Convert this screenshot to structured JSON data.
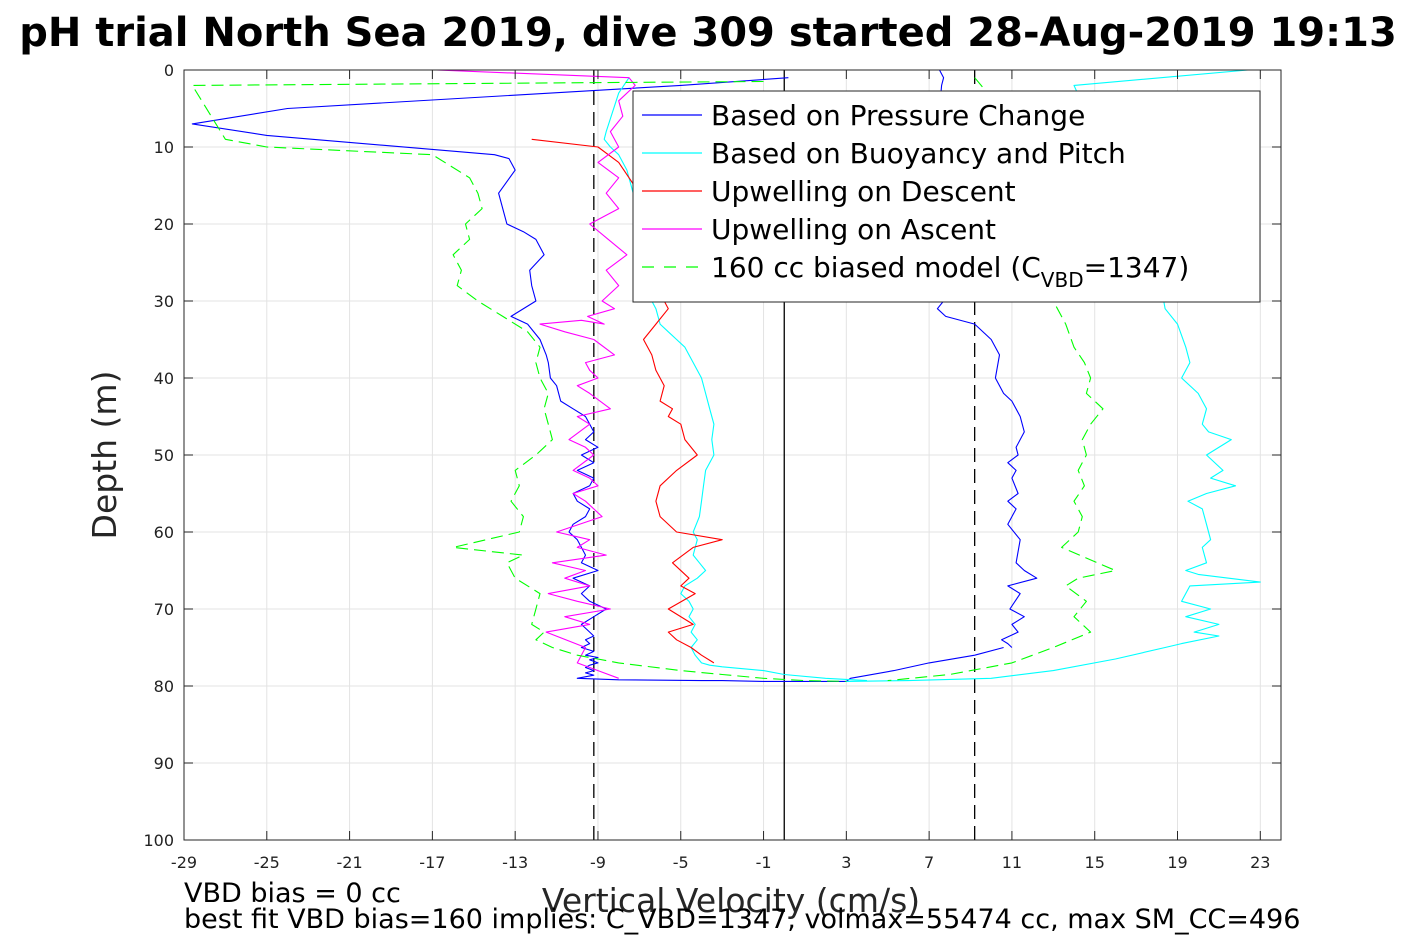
{
  "chart_data": {
    "type": "line",
    "title": "pH trial North Sea 2019, dive 309 started 28-Aug-2019 19:13",
    "xlabel": "Vertical Velocity (cm/s)",
    "ylabel": "Depth (m)",
    "xlim": [
      -29,
      24
    ],
    "ylim": [
      0,
      100
    ],
    "y_reversed": true,
    "grid": true,
    "xticks": [
      -29,
      -25,
      -21,
      -17,
      -13,
      -9,
      -5,
      -1,
      3,
      7,
      11,
      15,
      19,
      23
    ],
    "yticks": [
      0,
      10,
      20,
      30,
      40,
      50,
      60,
      70,
      80,
      90,
      100
    ],
    "legend_position": "top-right",
    "legend": [
      {
        "label": "Based on Pressure Change",
        "color": "#0000ff",
        "dash": "solid"
      },
      {
        "label": "Based on Buoyancy and Pitch",
        "color": "#00ffff",
        "dash": "solid"
      },
      {
        "label": "Upwelling on Descent",
        "color": "#ff0000",
        "dash": "solid"
      },
      {
        "label": "Upwelling on Ascent",
        "color": "#ff00ff",
        "dash": "solid"
      },
      {
        "label": "160 cc biased model (C",
        "sub": "VBD",
        "suffix": "=1347)",
        "color": "#00ff00",
        "dash": "dashed"
      }
    ],
    "reference_lines": [
      {
        "x": 0,
        "style": "solid",
        "color": "#000000"
      },
      {
        "x": -9.2,
        "style": "dashed",
        "color": "#000000"
      },
      {
        "x": 9.2,
        "style": "dashed",
        "color": "#000000"
      }
    ],
    "series": [
      {
        "name": "Based on Pressure Change",
        "color": "#0000ff",
        "dash": "solid",
        "x": [
          0.2,
          -5,
          -24,
          -28.6,
          -25,
          -14,
          -13.3,
          -13,
          -13.8,
          -13.4,
          -12.6,
          -12,
          -11.6,
          -12.3,
          -12.2,
          -12,
          -13.2,
          -12.4,
          -11.8,
          -11.5,
          -11.4,
          -11.3,
          -11,
          -10.8,
          -10.2,
          -9.6,
          -9.4,
          -9.2,
          -9.6,
          -9,
          -9.8,
          -9.2,
          -10,
          -9.2,
          -9.4,
          -10.2,
          -10,
          -9.4,
          -9.6,
          -10.2,
          -10.4,
          -10,
          -9.8,
          -9.6,
          -9.8,
          -9,
          -10.2,
          -9.4,
          -9.8,
          -9.4,
          -8.6,
          -9.2,
          -9.8,
          -9.4,
          -9.2,
          -9.6,
          -9.4,
          -9.8,
          -9.2,
          -9.6,
          -9,
          -9.4,
          -9,
          -9.4,
          -9.6,
          -9.2,
          -9.6,
          -9.2,
          -10,
          -8,
          -4,
          -3,
          -1,
          0.5,
          3,
          3.2,
          5.3,
          7,
          9.2,
          10.6
        ],
        "y": [
          1,
          2,
          5,
          7,
          8.5,
          11,
          11.5,
          13,
          16,
          20,
          21,
          22,
          24,
          26,
          28,
          30,
          32,
          33,
          35,
          37,
          38,
          40,
          41,
          43,
          44,
          45,
          46,
          47,
          48,
          49,
          50,
          51,
          52,
          53,
          54,
          55,
          56,
          57,
          58,
          59,
          60,
          61,
          62,
          63,
          64,
          65,
          66,
          67,
          68,
          69,
          70,
          71,
          72,
          73,
          73.5,
          74,
          74.5,
          75,
          75.5,
          76,
          76.3,
          76.6,
          77,
          77.3,
          77.6,
          78,
          78.3,
          78.6,
          79,
          79.2,
          79.3,
          79.3,
          79.4,
          79.4,
          79.4,
          79,
          78,
          77,
          76,
          75
        ]
      },
      {
        "name": "Based on Pressure Change (ascent)",
        "color": "#0000ff",
        "dash": "solid",
        "x": [
          7.5,
          7.7,
          7.6,
          7.5,
          7.6,
          7.5,
          7.4,
          7.5,
          7.6,
          7.7,
          7.4,
          7.8,
          9.2,
          10,
          10.4,
          10.2,
          10.6,
          11,
          11.4,
          11.6,
          11.2,
          11.3,
          10.8,
          11.2,
          11,
          11.3,
          10.8,
          11.2,
          10.8,
          11.4,
          11.2,
          11.6,
          12.2,
          10.8,
          11.4,
          10.9,
          11.6,
          11,
          11.3,
          10.5,
          10.8,
          11
        ],
        "y": [
          0,
          1,
          2,
          5,
          10,
          15,
          20,
          25,
          28,
          30,
          31,
          32,
          33,
          35,
          37,
          40,
          42,
          43,
          45,
          47,
          49,
          50,
          51,
          52,
          53,
          55,
          56,
          57,
          59,
          61,
          64,
          65,
          66,
          67,
          68,
          70,
          71,
          72,
          73,
          74,
          74.5,
          75
        ]
      },
      {
        "name": "Based on Buoyancy and Pitch",
        "color": "#00ffff",
        "dash": "solid",
        "x": [
          -7.5,
          -8,
          -8.6,
          -8.7,
          -8.4,
          -8,
          -7.6,
          -7.4,
          -7.2,
          -7,
          -6.9,
          -6.8,
          -6.9,
          -7,
          -6.8,
          -6.6,
          -6.4,
          -6.2,
          -6.1,
          -6,
          -5.6,
          -5.2,
          -4.8,
          -4.6,
          -4.4,
          -4.2,
          -4,
          -3.8,
          -3.6,
          -3.4,
          -3.5,
          -3.4,
          -3.8,
          -3.9,
          -4,
          -4.1,
          -4.4,
          -4.2,
          -4.3,
          -4.4,
          -4.1,
          -3.8,
          -4.2,
          -4.8,
          -5,
          -4.6,
          -4.4,
          -4.6,
          -4.3,
          -4.5,
          -4.2,
          -4.5,
          -4.3,
          -4,
          -3.6,
          -3,
          -1,
          0,
          2,
          4
        ],
        "y": [
          1,
          3,
          8,
          9,
          10,
          11,
          13,
          15,
          17,
          19,
          20,
          22,
          24,
          26,
          28,
          29,
          30,
          31,
          32,
          33,
          34,
          35,
          36,
          37,
          38,
          39,
          40,
          42,
          44,
          46,
          48,
          50,
          52,
          54,
          56,
          58,
          60,
          61,
          62,
          63,
          64,
          65,
          66,
          67,
          68,
          69,
          70,
          71,
          72,
          73,
          74,
          75,
          76,
          77,
          77.3,
          77.5,
          78,
          78.5,
          79,
          79.3
        ]
      },
      {
        "name": "Based on Buoyancy and Pitch (ascent)",
        "color": "#00ffff",
        "dash": "solid",
        "x": [
          22.4,
          14,
          14.5,
          15,
          16,
          17,
          17.5,
          18.2,
          18.4,
          19,
          19.4,
          19.6,
          19.2,
          20,
          20.4,
          20.2,
          20.5,
          21.6,
          20.4,
          21.2,
          20.6,
          21.8,
          20.4,
          19.5,
          20.2,
          20.4,
          20.6,
          20.2,
          20.4,
          19.4,
          20,
          23,
          19.6,
          19.2,
          20.6,
          19.4,
          21,
          19.8,
          21,
          19.2,
          18.4,
          16,
          13,
          10,
          6,
          3
        ],
        "y": [
          0,
          2,
          5,
          10,
          15,
          20,
          25,
          28,
          31,
          33,
          36,
          38,
          40,
          42,
          44,
          46,
          47,
          48,
          50,
          52,
          53,
          54,
          55,
          56,
          57,
          59,
          61,
          62,
          64,
          65,
          65.5,
          66.5,
          67,
          69,
          70,
          71,
          72,
          73,
          73.5,
          74.5,
          75,
          76.5,
          78,
          79,
          79.3,
          79.4
        ]
      },
      {
        "name": "Upwelling on Descent",
        "color": "#ff0000",
        "dash": "solid",
        "x": [
          -12.2,
          -9,
          -8,
          -7,
          -6.4,
          -6,
          -5.8,
          -5.6,
          -6.2,
          -6.8,
          -6.4,
          -6.2,
          -5.8,
          -6,
          -5.4,
          -5.6,
          -5,
          -4.8,
          -4.2,
          -5.2,
          -6,
          -6.2,
          -6,
          -5.2,
          -3,
          -4.4,
          -5.4,
          -4.6,
          -5,
          -4.3,
          -5.6,
          -4.4,
          -5.6,
          -5.2,
          -4.5,
          -4,
          -3.4
        ],
        "y": [
          9,
          10,
          12,
          16,
          20,
          26,
          30,
          31,
          33,
          35,
          37,
          39,
          41,
          43,
          44,
          45,
          46,
          48,
          50,
          52,
          54,
          56,
          58,
          60,
          61,
          62,
          64,
          66,
          67,
          68,
          70,
          72,
          73,
          74,
          75,
          76,
          77
        ]
      },
      {
        "name": "Upwelling on Ascent",
        "color": "#ff00ff",
        "dash": "solid",
        "x": [
          -16.8,
          -7.5,
          -7.2,
          -8,
          -7.8,
          -8.4,
          -8,
          -9,
          -8,
          -8.6,
          -8,
          -9.4,
          -8.5,
          -7.6,
          -8.6,
          -8,
          -8.8,
          -8.2,
          -9.5,
          -8.7,
          -9.8,
          -11.8,
          -10.6,
          -9.2,
          -8.2,
          -9.6,
          -9.4,
          -9,
          -10,
          -9.4,
          -8.4,
          -10,
          -9.4,
          -10.4,
          -9.6,
          -9.2,
          -10.2,
          -9.4,
          -9,
          -10.2,
          -9.6,
          -8.8,
          -11,
          -9.4,
          -10,
          -8.6,
          -11.2,
          -9.6,
          -10.6,
          -9.4,
          -11.4,
          -10,
          -8.4,
          -10.6,
          -9.4,
          -11.5,
          -9.6,
          -10,
          -9,
          -8
        ],
        "y": [
          0,
          1,
          2,
          4,
          6,
          8,
          10,
          12,
          14,
          16,
          18,
          20,
          22,
          24,
          26,
          28,
          30,
          31,
          32,
          33,
          32.5,
          33,
          34,
          35,
          37,
          38,
          39,
          40,
          41,
          42,
          44,
          45,
          46,
          48,
          49,
          50,
          52,
          53,
          54,
          55,
          56,
          58,
          60,
          61,
          62,
          63,
          64,
          65,
          66,
          67,
          68,
          69,
          70,
          71,
          72,
          73,
          75,
          77,
          78,
          79
        ]
      },
      {
        "name": "160 cc biased model (C_VBD=1347)",
        "color": "#00ff00",
        "dash": "dashed",
        "x": [
          -1,
          -28.6,
          -27,
          -25,
          -17,
          -15.2,
          -14.8,
          -14.6,
          -15.4,
          -15.2,
          -16,
          -15.6,
          -15.8,
          -14.8,
          -13.6,
          -12.4,
          -11.8,
          -12,
          -11.8,
          -11.4,
          -11.6,
          -11.4,
          -11.2,
          -12,
          -13,
          -12.8,
          -13.2,
          -12.6,
          -12.8,
          -16,
          -12.6,
          -13.4,
          -13,
          -11.8,
          -12,
          -12.2,
          -11.6,
          -12,
          -11.2,
          -10,
          -8,
          -5,
          -3,
          -1,
          1,
          3
        ],
        "y": [
          1.5,
          2,
          9,
          10,
          11,
          14,
          16,
          18,
          20,
          22,
          24,
          26,
          28,
          30,
          32,
          34,
          36,
          38,
          40,
          42,
          44,
          46,
          48,
          50,
          52,
          54,
          56,
          58,
          60,
          62,
          63,
          64,
          66,
          68,
          70,
          72,
          73,
          74,
          75,
          76,
          77,
          78,
          78.5,
          79,
          79.3,
          79.4
        ]
      },
      {
        "name": "160 cc biased model (C_VBD=1347) (ascent)",
        "color": "#00ff00",
        "dash": "dashed",
        "x": [
          9.2,
          12,
          12.5,
          13,
          13.6,
          14,
          14.5,
          14.8,
          14.6,
          15.4,
          14.8,
          14.4,
          14.6,
          14.2,
          14.5,
          14,
          14.4,
          14.2,
          13.4,
          16,
          14.2,
          13.6,
          14.6,
          14,
          14.8,
          13,
          11,
          8,
          5
        ],
        "y": [
          1,
          10,
          20,
          30,
          33,
          36,
          38,
          40,
          42,
          44,
          46,
          48,
          50,
          52,
          54,
          56,
          58,
          60,
          62,
          65,
          66,
          67,
          69,
          71,
          73,
          75,
          77,
          78.5,
          79.3
        ]
      }
    ]
  },
  "footer": {
    "line1": "VBD bias = 0 cc",
    "line2": "best fit VBD bias=160 implies: C_VBD=1347, volmax=55474 cc, max SM_CC=496"
  }
}
